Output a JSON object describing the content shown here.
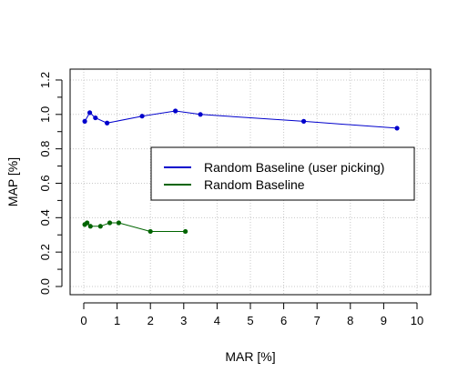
{
  "chart_data": {
    "type": "line",
    "title": "",
    "xlabel": "MAR [%]",
    "ylabel": "MAP [%]",
    "xlim": [
      0,
      10
    ],
    "ylim": [
      0,
      1.2
    ],
    "x_ticks": [
      "0",
      "1",
      "2",
      "3",
      "4",
      "5",
      "6",
      "7",
      "8",
      "9",
      "10"
    ],
    "y_ticks": [
      "0.0",
      "0.2",
      "0.4",
      "0.6",
      "0.8",
      "1.0",
      "1.2"
    ],
    "grid": true,
    "legend_position": "right-center",
    "series": [
      {
        "name": "Random Baseline (user picking)",
        "color": "#0000cc",
        "points": [
          [
            0.03,
            0.96
          ],
          [
            0.18,
            1.01
          ],
          [
            0.35,
            0.98
          ],
          [
            0.7,
            0.95
          ],
          [
            1.75,
            0.99
          ],
          [
            2.75,
            1.02
          ],
          [
            3.5,
            1.0
          ],
          [
            6.6,
            0.96
          ],
          [
            9.4,
            0.92
          ]
        ]
      },
      {
        "name": "Random Baseline",
        "color": "#006400",
        "points": [
          [
            0.03,
            0.36
          ],
          [
            0.1,
            0.37
          ],
          [
            0.2,
            0.35
          ],
          [
            0.5,
            0.35
          ],
          [
            0.78,
            0.37
          ],
          [
            1.05,
            0.37
          ],
          [
            2.0,
            0.32
          ],
          [
            3.05,
            0.32
          ]
        ]
      }
    ]
  }
}
